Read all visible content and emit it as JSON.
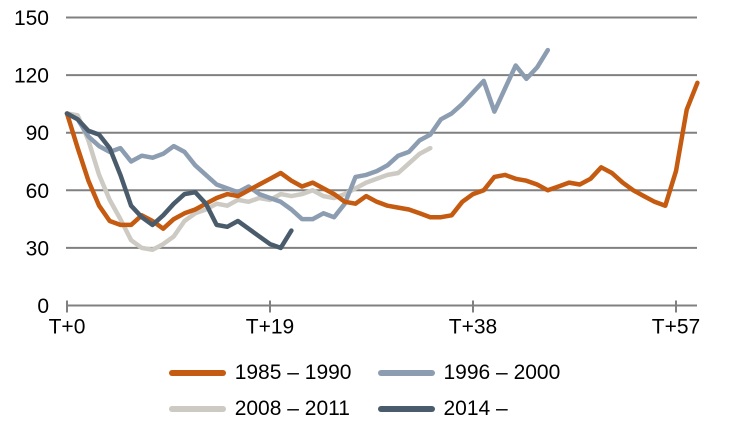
{
  "chart_data": {
    "type": "line",
    "title": "",
    "xlabel": "",
    "ylabel": "",
    "grid": true,
    "legend_position": "bottom",
    "x_axis": {
      "tick_labels": [
        "T+0",
        "T+19",
        "T+38",
        "T+57"
      ],
      "tick_positions": [
        0,
        19,
        38,
        57
      ],
      "min": 0,
      "max": 59
    },
    "y_axis": {
      "tick_labels": [
        "0",
        "30",
        "60",
        "90",
        "120",
        "150"
      ],
      "tick_values": [
        0,
        30,
        60,
        90,
        120,
        150
      ],
      "min": 0,
      "max": 150
    },
    "series": [
      {
        "name": "1985 – 1990",
        "color": "#C55A11",
        "x_start": 0,
        "values": [
          100,
          82,
          65,
          52,
          44,
          42,
          42,
          47,
          44,
          40,
          45,
          48,
          50,
          53,
          56,
          58,
          57,
          60,
          63,
          66,
          69,
          65,
          62,
          64,
          61,
          58,
          54,
          53,
          57,
          54,
          52,
          51,
          50,
          48,
          46,
          46,
          47,
          54,
          58,
          60,
          67,
          68,
          66,
          65,
          63,
          60,
          62,
          64,
          63,
          66,
          72,
          69,
          64,
          60,
          57,
          54,
          52,
          70,
          102,
          116
        ]
      },
      {
        "name": "1996 – 2000",
        "color": "#8C9DB1",
        "x_start": 0,
        "values": [
          100,
          97,
          88,
          83,
          80,
          82,
          75,
          78,
          77,
          79,
          83,
          80,
          73,
          68,
          63,
          61,
          59,
          62,
          58,
          56,
          54,
          50,
          45,
          45,
          48,
          46,
          53,
          67,
          68,
          70,
          73,
          78,
          80,
          86,
          89,
          97,
          100,
          105,
          111,
          117,
          101,
          113,
          125,
          118,
          124,
          133
        ]
      },
      {
        "name": "2008 – 2011",
        "color": "#CCCAC2",
        "x_start": 0,
        "values": [
          100,
          99,
          86,
          68,
          55,
          45,
          34,
          30,
          29,
          32,
          36,
          44,
          48,
          50,
          53,
          52,
          55,
          54,
          56,
          55,
          58,
          57,
          58,
          60,
          57,
          56,
          58,
          61,
          64,
          66,
          68,
          69,
          74,
          79,
          82
        ]
      },
      {
        "name": "2014 –",
        "color": "#4A5C6B",
        "x_start": 0,
        "values": [
          100,
          97,
          91,
          89,
          82,
          68,
          52,
          46,
          42,
          47,
          53,
          58,
          59,
          53,
          42,
          41,
          44,
          40,
          36,
          32,
          30,
          39
        ]
      }
    ],
    "colors": {
      "grid": "#808080",
      "axis": "#808080",
      "text": "#000000",
      "background": "#FFFFFF"
    }
  }
}
